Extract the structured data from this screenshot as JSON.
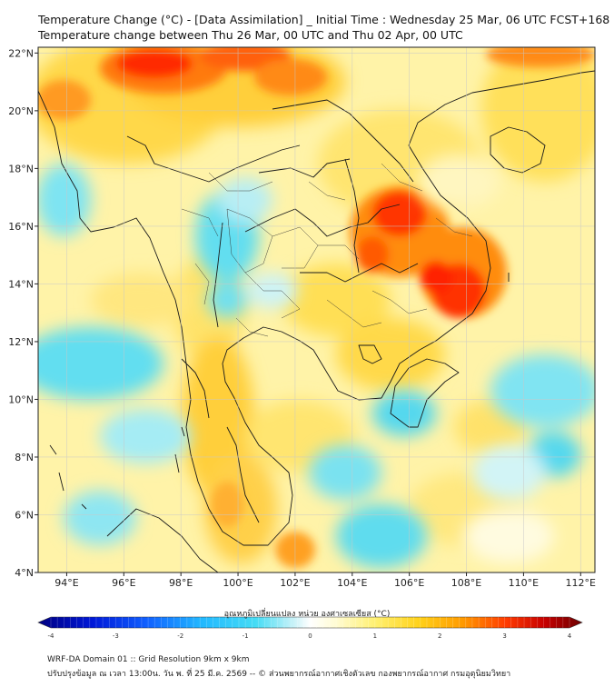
{
  "title": {
    "line1": "Temperature Change (°C) - [Data Assimilation] _ Initial Time : Wednesday 25 Mar, 06 UTC FCST+168",
    "line2": "Temperature change between Thu 26 Mar, 00 UTC and Thu 02 Apr, 00 UTC"
  },
  "map": {
    "lat_labels": [
      "22°N",
      "20°N",
      "18°N",
      "16°N",
      "14°N",
      "12°N",
      "10°N",
      "8°N",
      "6°N",
      "4°N"
    ],
    "lon_labels": [
      "94°E",
      "96°E",
      "98°E",
      "100°E",
      "102°E",
      "104°E",
      "106°E",
      "108°E",
      "110°E",
      "112°E"
    ],
    "lat_range": [
      4,
      22.2
    ],
    "lon_range": [
      93,
      112.5
    ]
  },
  "colorbar": {
    "label": "อุณหภูมิเปลี่ยนแปลง หน่วย องศาเซลเซียส (°C)",
    "tick_labels": [
      "-4",
      "-3",
      "-2",
      "-1",
      "0",
      "1",
      "2",
      "3",
      "4"
    ],
    "range": [
      -4,
      4
    ]
  },
  "footer": {
    "line1": "WRF-DA Domain 01 :: Grid Resolution 9km x 9km",
    "line2": "ปรับปรุงข้อมูล ณ เวลา 13:00น. วัน พ. ที่ 25 มี.ค. 2569 -- © ส่วนพยากรณ์อากาศเชิงตัวเลข กองพยากรณ์อากาศ กรมอุตุนิยมวิทยา"
  },
  "colors": {
    "neg_deep": "#000080",
    "neg": "#2fd6f0",
    "neutral": "#fffef0",
    "pos": "#ffe23a",
    "pos_strong": "#ff2a00",
    "pos_deep": "#6b0000",
    "coast": "#1a1a1a"
  }
}
